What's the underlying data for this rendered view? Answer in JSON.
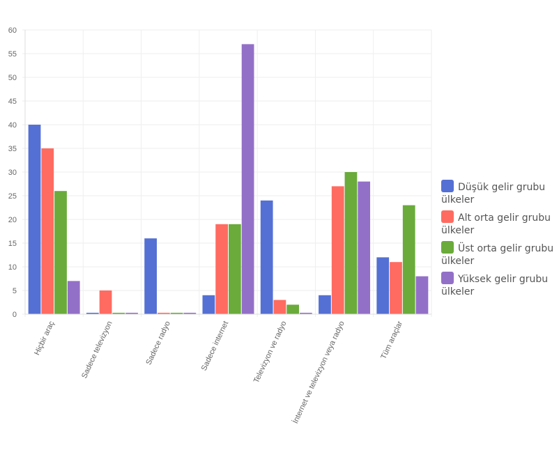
{
  "chart_data": {
    "type": "bar",
    "title": "",
    "xlabel": "",
    "ylabel": "",
    "ylim": [
      0,
      60
    ],
    "ytick_step": 5,
    "grid": true,
    "legend_position": "right",
    "categories": [
      "Hiçbir araç",
      "Sadece televizyon",
      "Sadece radyo",
      "Sadece internet",
      "Televizyon ve radyo",
      "İnternet ve televizyon veya radyo",
      "Tüm araçlar"
    ],
    "series": [
      {
        "name": "Düşük gelir grubu ülkeler",
        "color": "#5470d4",
        "values": [
          40,
          0,
          16,
          4,
          24,
          4,
          12
        ]
      },
      {
        "name": "Alt orta gelir grubu ülkeler",
        "color": "#ff6b61",
        "values": [
          35,
          5,
          0,
          19,
          3,
          27,
          11
        ]
      },
      {
        "name": "Üst orta gelir grubu ülkeler",
        "color": "#6aab3b",
        "values": [
          26,
          0,
          0,
          19,
          2,
          30,
          23
        ]
      },
      {
        "name": "Yüksek gelir grubu ülkeler",
        "color": "#9370c8",
        "values": [
          7,
          0,
          0,
          57,
          0,
          28,
          8
        ]
      }
    ]
  }
}
